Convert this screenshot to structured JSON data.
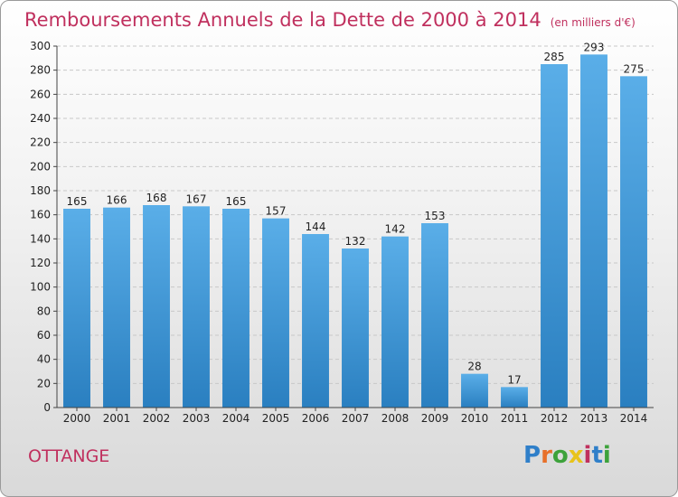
{
  "header": {
    "title": "Remboursements Annuels de la Dette de 2000 à 2014",
    "unit": "(en milliers d'€)"
  },
  "footer": {
    "city": "OTTANGE",
    "logo_letters": [
      "P",
      "r",
      "o",
      "x",
      "i",
      "t",
      "i"
    ],
    "logo_colors": [
      "#2f7fc9",
      "#e8702a",
      "#3da23b",
      "#e8c31a",
      "#c0305e",
      "#2f7fc9",
      "#3da23b"
    ]
  },
  "chart_data": {
    "type": "bar",
    "categories": [
      "2000",
      "2001",
      "2002",
      "2003",
      "2004",
      "2005",
      "2006",
      "2007",
      "2008",
      "2009",
      "2010",
      "2011",
      "2012",
      "2013",
      "2014"
    ],
    "values": [
      165,
      166,
      168,
      167,
      165,
      157,
      144,
      132,
      142,
      153,
      28,
      17,
      285,
      293,
      275
    ],
    "ylim": [
      0,
      300
    ],
    "yticks": [
      0,
      20,
      40,
      60,
      80,
      100,
      120,
      140,
      160,
      180,
      200,
      220,
      240,
      260,
      280,
      300
    ],
    "grid": true,
    "colors": {
      "bar_light": "#5aaee8",
      "bar_dark": "#2a7fc0",
      "grid": "#c8c8c8"
    }
  }
}
